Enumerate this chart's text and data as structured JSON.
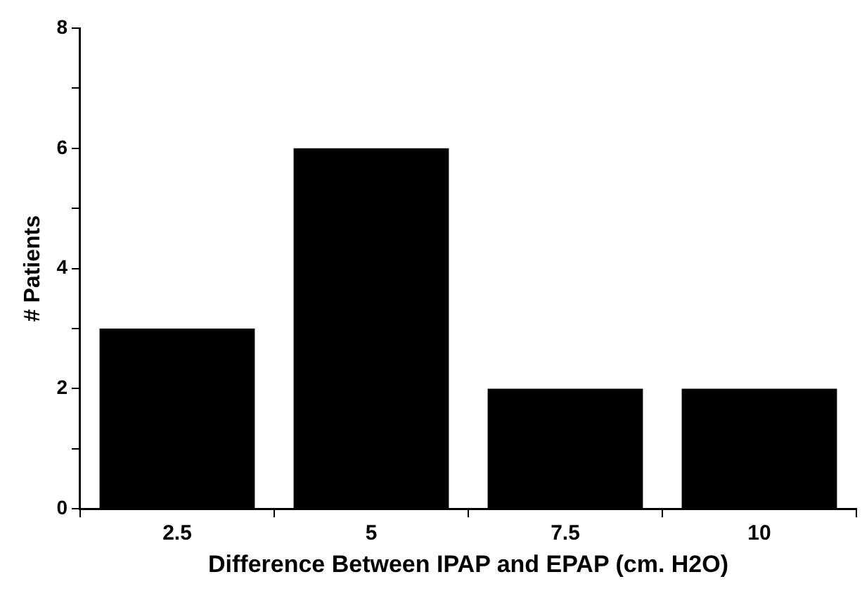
{
  "chart_data": {
    "type": "bar",
    "xlabel": "Difference Between IPAP and EPAP (cm. H2O)",
    "ylabel": "# Patients",
    "categories": [
      "2.5",
      "5",
      "7.5",
      "10"
    ],
    "values": [
      3,
      6,
      2,
      2
    ],
    "color": "#000000",
    "ylim": [
      0,
      8
    ],
    "yticks": [
      0,
      {
        "value": 1,
        "label": null
      },
      2,
      {
        "value": 3,
        "label": null
      },
      4,
      {
        "value": 5,
        "label": null
      },
      6,
      {
        "value": 7,
        "label": null
      },
      8
    ],
    "grid": false,
    "legend": false
  }
}
